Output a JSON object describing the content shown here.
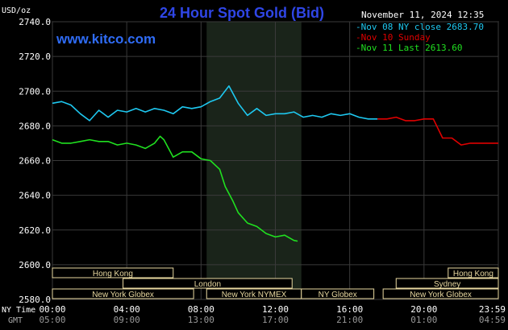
{
  "header": {
    "title": "24 Hour Spot Gold (Bid)",
    "timestamp": "November 11, 2024 12:35",
    "unit": "USD/oz",
    "site": "www.kitco.com"
  },
  "sessions": {
    "row1": [
      {
        "label": "Hong Kong",
        "from": 0,
        "to": 6.5
      },
      {
        "label": "Hong Kong",
        "from": 21.3,
        "to": 24
      }
    ],
    "row2": [
      {
        "label": "London",
        "from": 3.8,
        "to": 12.9
      },
      {
        "label": "Sydney",
        "from": 18.5,
        "to": 24
      }
    ],
    "row3": [
      {
        "label": "New York Globex",
        "from": 0,
        "to": 7.6
      },
      {
        "label": "New York NYMEX",
        "from": 8.3,
        "to": 13.4
      },
      {
        "label": "NY Globex",
        "from": 13.4,
        "to": 17.3
      },
      {
        "label": "New York Globex",
        "from": 17.8,
        "to": 24
      }
    ]
  },
  "axis_rows": {
    "ny_label": "NY Time",
    "gmt_label": "GMT",
    "ny_ticks": [
      "00:00",
      "04:00",
      "08:00",
      "12:00",
      "16:00",
      "20:00",
      "23:59"
    ],
    "gmt_ticks": [
      "05:00",
      "09:00",
      "13:00",
      "17:00",
      "21:00",
      "01:00",
      "04:59"
    ],
    "tick_hours": [
      0,
      4,
      8,
      12,
      16,
      20,
      24
    ]
  },
  "chart_data": {
    "type": "line",
    "title": "24 Hour Spot Gold (Bid)",
    "xlabel": "NY Time",
    "ylabel": "USD/oz",
    "xlim": [
      0,
      24
    ],
    "ylim": [
      2580,
      2740
    ],
    "yticks": [
      2580,
      2600,
      2620,
      2640,
      2660,
      2680,
      2700,
      2720,
      2740
    ],
    "ytick_labels": [
      "2580.0",
      "2600.0",
      "2620.0",
      "2640.0",
      "2660.0",
      "2680.0",
      "2700.0",
      "2720.0",
      "2740.0"
    ],
    "grid": true,
    "nymex_session_hours": [
      8.3,
      13.4
    ],
    "legend_position": "top-right",
    "series": [
      {
        "name": "Nov 08 NY close 2683.70",
        "color": "#1EC8F0",
        "points": [
          [
            0,
            2693
          ],
          [
            0.5,
            2694
          ],
          [
            1,
            2692
          ],
          [
            1.5,
            2687
          ],
          [
            2,
            2683
          ],
          [
            2.5,
            2689
          ],
          [
            3,
            2685
          ],
          [
            3.5,
            2689
          ],
          [
            4,
            2688
          ],
          [
            4.5,
            2690
          ],
          [
            5,
            2688
          ],
          [
            5.5,
            2690
          ],
          [
            6,
            2689
          ],
          [
            6.5,
            2687
          ],
          [
            7,
            2691
          ],
          [
            7.5,
            2690
          ],
          [
            8,
            2691
          ],
          [
            8.5,
            2694
          ],
          [
            9,
            2696
          ],
          [
            9.5,
            2703
          ],
          [
            10,
            2693
          ],
          [
            10.5,
            2686
          ],
          [
            11,
            2690
          ],
          [
            11.5,
            2686
          ],
          [
            12,
            2687
          ],
          [
            12.5,
            2687
          ],
          [
            13,
            2688
          ],
          [
            13.5,
            2685
          ],
          [
            14,
            2686
          ],
          [
            14.5,
            2685
          ],
          [
            15,
            2687
          ],
          [
            15.5,
            2686
          ],
          [
            16,
            2687
          ],
          [
            16.5,
            2685
          ],
          [
            17,
            2684
          ],
          [
            17.5,
            2684
          ]
        ]
      },
      {
        "name": "Nov 10 Sunday",
        "color": "#E00000",
        "points": [
          [
            17.5,
            2684
          ],
          [
            18,
            2684
          ],
          [
            18.5,
            2685
          ],
          [
            19,
            2683
          ],
          [
            19.5,
            2683
          ],
          [
            20,
            2684
          ],
          [
            20.5,
            2684
          ],
          [
            21,
            2673
          ],
          [
            21.5,
            2673
          ],
          [
            22,
            2669
          ],
          [
            22.5,
            2670
          ],
          [
            23,
            2670
          ],
          [
            23.5,
            2670
          ],
          [
            24,
            2670
          ]
        ]
      },
      {
        "name": "Nov 11 Last 2613.60",
        "color": "#20E020",
        "points": [
          [
            0,
            2672
          ],
          [
            0.5,
            2670
          ],
          [
            1,
            2670
          ],
          [
            1.5,
            2671
          ],
          [
            2,
            2672
          ],
          [
            2.5,
            2671
          ],
          [
            3,
            2671
          ],
          [
            3.5,
            2669
          ],
          [
            4,
            2670
          ],
          [
            4.5,
            2669
          ],
          [
            5,
            2667
          ],
          [
            5.5,
            2670
          ],
          [
            5.8,
            2674
          ],
          [
            6,
            2672
          ],
          [
            6.5,
            2662
          ],
          [
            7,
            2665
          ],
          [
            7.5,
            2665
          ],
          [
            8,
            2661
          ],
          [
            8.5,
            2660
          ],
          [
            9,
            2655
          ],
          [
            9.3,
            2645
          ],
          [
            9.7,
            2637
          ],
          [
            10,
            2630
          ],
          [
            10.5,
            2624
          ],
          [
            11,
            2622
          ],
          [
            11.5,
            2618
          ],
          [
            12,
            2616
          ],
          [
            12.5,
            2617
          ],
          [
            13,
            2614
          ],
          [
            13.2,
            2613.6
          ]
        ]
      }
    ]
  }
}
